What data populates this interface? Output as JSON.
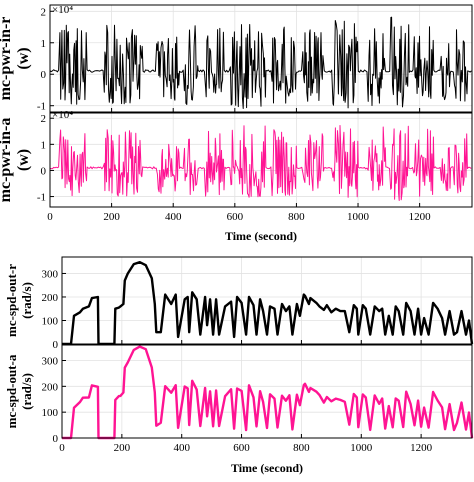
{
  "chart_data": [
    {
      "type": "line",
      "ylabel": "mc-pwr-in-r\n(w)",
      "exponent_label": "×10⁴",
      "xlim": [
        0,
        1370
      ],
      "ylim": [
        -1.2,
        2.2
      ],
      "yticks": [
        -1,
        0,
        1,
        2
      ],
      "xticks": [
        0,
        200,
        400,
        600,
        800,
        1000,
        1200
      ],
      "grid": true,
      "series": [
        {
          "color": "#000000",
          "signal": "power"
        }
      ]
    },
    {
      "type": "line",
      "ylabel": "mc-pwr-in-a\n(w)",
      "exponent_label": "×10⁴",
      "xlabel": "Time (second)",
      "xlim": [
        0,
        1370
      ],
      "ylim": [
        -1.4,
        2.2
      ],
      "yticks": [
        -1,
        0,
        1,
        2
      ],
      "xticks": [
        0,
        200,
        400,
        600,
        800,
        1000,
        1200
      ],
      "grid": true,
      "series": [
        {
          "color": "#ff1493",
          "signal": "power"
        }
      ]
    },
    {
      "type": "line",
      "ylabel": "mc-spd-out-r\n(rad/s)",
      "xlim": [
        0,
        1370
      ],
      "ylim": [
        0,
        370
      ],
      "yticks": [
        0,
        100,
        200,
        300
      ],
      "xticks": [
        0,
        200,
        400,
        600,
        800,
        1000,
        1200
      ],
      "grid": true,
      "series": [
        {
          "color": "#000000",
          "signal": "speed"
        }
      ]
    },
    {
      "type": "line",
      "ylabel": "mc-spd-out-a\n(rad/s)",
      "xlabel": "Time (second)",
      "xlim": [
        0,
        1370
      ],
      "ylim": [
        0,
        360
      ],
      "yticks": [
        0,
        100,
        200,
        300
      ],
      "xticks": [
        0,
        200,
        400,
        600,
        800,
        1000,
        1200
      ],
      "grid": true,
      "series": [
        {
          "color": "#ff1493",
          "signal": "speed"
        }
      ]
    }
  ],
  "speed_profile": {
    "x": [
      0,
      30,
      40,
      60,
      70,
      90,
      100,
      120,
      122,
      175,
      178,
      190,
      195,
      205,
      210,
      220,
      240,
      260,
      280,
      300,
      310,
      315,
      330,
      345,
      365,
      380,
      388,
      410,
      420,
      425,
      435,
      450,
      462,
      478,
      485,
      495,
      505,
      515,
      525,
      545,
      565,
      575,
      585,
      600,
      615,
      625,
      640,
      650,
      662,
      672,
      685,
      695,
      710,
      720,
      735,
      748,
      760,
      770,
      785,
      795,
      808,
      812,
      825,
      830,
      850,
      860,
      875,
      885,
      900,
      915,
      930,
      945,
      960,
      975,
      985,
      990,
      1005,
      1015,
      1030,
      1045,
      1060,
      1070,
      1080,
      1092,
      1105,
      1115,
      1125,
      1140,
      1150,
      1165,
      1178,
      1190,
      1200,
      1210,
      1225,
      1240,
      1255,
      1270,
      1280,
      1295,
      1310,
      1320,
      1335,
      1350,
      1360,
      1370
    ],
    "y": [
      0,
      0,
      120,
      135,
      150,
      160,
      195,
      200,
      0,
      0,
      150,
      155,
      160,
      170,
      270,
      300,
      340,
      348,
      335,
      280,
      170,
      50,
      50,
      210,
      170,
      210,
      30,
      190,
      200,
      50,
      220,
      190,
      40,
      200,
      80,
      190,
      40,
      190,
      40,
      160,
      180,
      30,
      200,
      175,
      40,
      200,
      165,
      40,
      190,
      140,
      40,
      160,
      150,
      40,
      170,
      140,
      160,
      40,
      170,
      120,
      210,
      205,
      170,
      195,
      175,
      160,
      145,
      165,
      135,
      150,
      140,
      140,
      50,
      165,
      150,
      40,
      165,
      150,
      40,
      160,
      140,
      150,
      40,
      120,
      40,
      160,
      140,
      40,
      175,
      140,
      40,
      150,
      40,
      110,
      40,
      175,
      150,
      110,
      40,
      140,
      40,
      50,
      140,
      40,
      100,
      0
    ]
  }
}
